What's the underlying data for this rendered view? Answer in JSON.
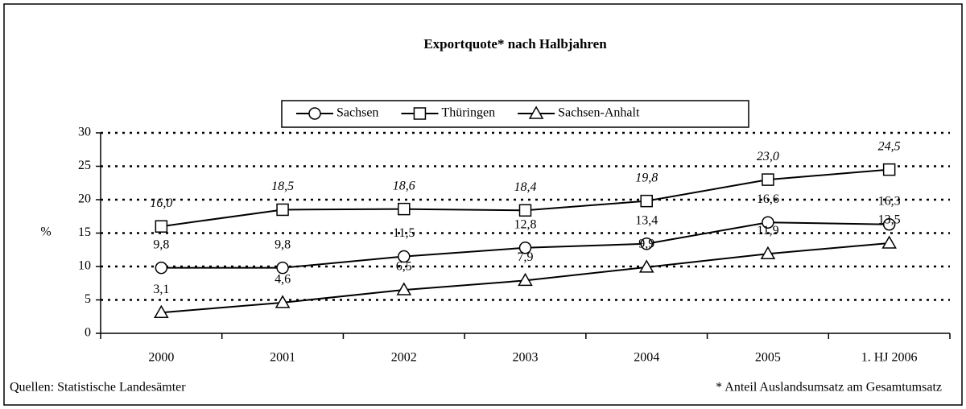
{
  "chart_data": {
    "type": "line",
    "title": "Exportquote* nach Halbjahren",
    "y_label": "%",
    "source": "Quellen: Statistische Landesämter",
    "footnote": "* Anteil Auslandsumsatz am Gesamtumsatz",
    "categories": [
      "2000",
      "2001",
      "2002",
      "2003",
      "2004",
      "2005",
      "1. HJ 2006"
    ],
    "series": [
      {
        "name": "Sachsen",
        "color": "#000000",
        "marker": "circle",
        "label_style": "normal",
        "values": [
          9.8,
          9.8,
          11.5,
          12.8,
          13.4,
          16.6,
          16.3
        ],
        "value_labels": [
          "9,8",
          "9,8",
          "11,5",
          "12,8",
          "13,4",
          "16,6",
          "16,3"
        ]
      },
      {
        "name": "Thüringen",
        "color": "#000000",
        "marker": "square",
        "label_style": "italic",
        "values": [
          16.0,
          18.5,
          18.6,
          18.4,
          19.8,
          23.0,
          24.5
        ],
        "value_labels": [
          "16,0",
          "18,5",
          "18,6",
          "18,4",
          "19,8",
          "23,0",
          "24,5"
        ]
      },
      {
        "name": "Sachsen-Anhalt",
        "color": "#000000",
        "marker": "triangle",
        "label_style": "normal",
        "values": [
          3.1,
          4.6,
          6.5,
          7.9,
          9.9,
          11.9,
          13.5
        ],
        "value_labels": [
          "3,1",
          "4,6",
          "6,5",
          "7,9",
          "9,9",
          "11,9",
          "13,5"
        ]
      }
    ],
    "ylim": [
      0,
      30
    ],
    "yticks": [
      0,
      5,
      10,
      15,
      20,
      25,
      30
    ],
    "grid": true,
    "legend": "top"
  }
}
